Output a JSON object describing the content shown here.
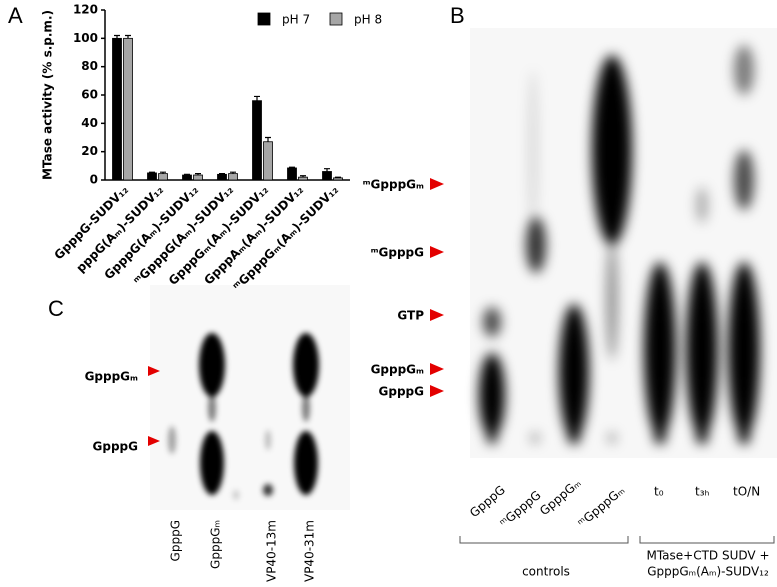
{
  "chart_data": {
    "type": "bar",
    "panel_label": "A",
    "y_label": "MTase activity (% s.p.m.)",
    "categories": [
      "GpppG-SUDV₁₂",
      "pppG(Aₘ)-SUDV₁₂",
      "GpppG(Aₘ)-SUDV₁₂",
      "ᵐGpppG(Aₘ)-SUDV₁₂",
      "GpppGₘ(Aₘ)-SUDV₁₂",
      "GpppAₘ(Aₘ)-SUDV₁₂",
      "ᵐGpppGₘ(Aₘ)-SUDV₁₂"
    ],
    "series": [
      {
        "name": "pH 7",
        "color": "#000000",
        "values": [
          100,
          5,
          3.5,
          4,
          56,
          8.5,
          6
        ],
        "errors": [
          2,
          0.5,
          0.5,
          0.5,
          3,
          0.5,
          2
        ]
      },
      {
        "name": "pH 8",
        "color": "#a6a6a6",
        "values": [
          100,
          4.5,
          3.5,
          4.5,
          27,
          2,
          1.5
        ],
        "errors": [
          2,
          1,
          1,
          1,
          3,
          1,
          0.5
        ]
      }
    ],
    "ylim": [
      0,
      120
    ],
    "yticks": [
      0,
      20,
      40,
      60,
      80,
      100,
      120
    ],
    "legend": "top-right"
  },
  "panel_b": {
    "panel_label": "B",
    "spot_labels": [
      "ᵐGpppGₘ",
      "ᵐGpppG",
      "GTP",
      "GpppGₘ",
      "GpppG"
    ],
    "lane_labels": [
      "GpppG",
      "ᵐGpppG",
      "GpppGₘ",
      "ᵐGpppGₘ",
      "t₀",
      "t₃ₕ",
      "tO/N"
    ],
    "controls_label": "controls",
    "treatment_label": [
      "MTase+CTD SUDV +",
      "GpppGₘ(Aₘ)-SUDV₁₂"
    ]
  },
  "panel_c": {
    "panel_label": "C",
    "spot_labels": [
      "GpppGₘ",
      "GpppG"
    ],
    "lane_labels": [
      "GpppG",
      "GpppGₘ",
      "VP40-13m",
      "VP40-31m"
    ]
  }
}
